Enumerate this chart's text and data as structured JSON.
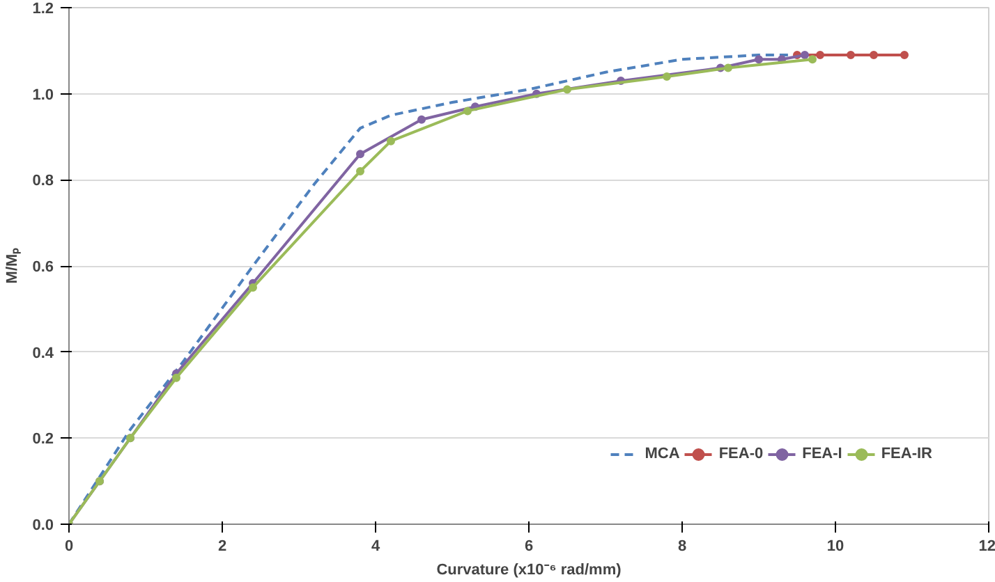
{
  "chart_data": {
    "type": "line",
    "xlabel": "Curvature (x10⁻⁶ rad/mm)",
    "ylabel": "M/Mₚ",
    "xlim": [
      0,
      12
    ],
    "xticks": [
      0,
      2,
      4,
      6,
      8,
      10,
      12
    ],
    "ylim": [
      0,
      1.2
    ],
    "yticks": [
      {
        "value": 0,
        "label": "0.0"
      },
      {
        "value": 0.2,
        "label": "0.2"
      },
      {
        "value": 0.4,
        "label": "0.4"
      },
      {
        "value": 0.6,
        "label": "0.6"
      },
      {
        "value": 0.8,
        "label": "0.8"
      },
      {
        "value": 1,
        "label": "1.0"
      },
      {
        "value": 1.2,
        "label": "1.2"
      }
    ],
    "grid": "y",
    "legend": "bottom right",
    "series": [
      {
        "name": "MCA",
        "color": "#4f81bd",
        "line_style": "dashed",
        "marker": "none",
        "x": [
          0,
          0.8,
          1.5,
          2.4,
          3.2,
          3.8,
          4.2,
          5,
          6,
          7,
          8,
          9,
          9.6
        ],
        "values": [
          0,
          0.22,
          0.38,
          0.6,
          0.79,
          0.92,
          0.95,
          0.98,
          1.01,
          1.05,
          1.08,
          1.09,
          1.09
        ]
      },
      {
        "name": "FEA-0",
        "color": "#c0504d",
        "line_style": "solid",
        "marker": "circle",
        "x": [
          9.5,
          9.8,
          10.2,
          10.5,
          10.9
        ],
        "values": [
          1.09,
          1.09,
          1.09,
          1.09,
          1.09
        ]
      },
      {
        "name": "FEA-I",
        "color": "#8064a2",
        "line_style": "solid",
        "marker": "circle",
        "x": [
          0,
          0.4,
          0.8,
          1.4,
          2.4,
          3.8,
          4.6,
          5.3,
          6.1,
          7.2,
          8.5,
          9,
          9.3,
          9.6
        ],
        "values": [
          0,
          0.1,
          0.2,
          0.35,
          0.56,
          0.86,
          0.94,
          0.97,
          1.0,
          1.03,
          1.06,
          1.08,
          1.08,
          1.09
        ]
      },
      {
        "name": "FEA-IR",
        "color": "#9bbb59",
        "line_style": "solid",
        "marker": "circle",
        "x": [
          0,
          0.4,
          0.8,
          1.4,
          2.4,
          3.8,
          4.2,
          5.2,
          6.5,
          7.8,
          8.6,
          9.7
        ],
        "values": [
          0,
          0.1,
          0.2,
          0.34,
          0.55,
          0.82,
          0.89,
          0.96,
          1.01,
          1.04,
          1.06,
          1.08
        ]
      }
    ]
  }
}
